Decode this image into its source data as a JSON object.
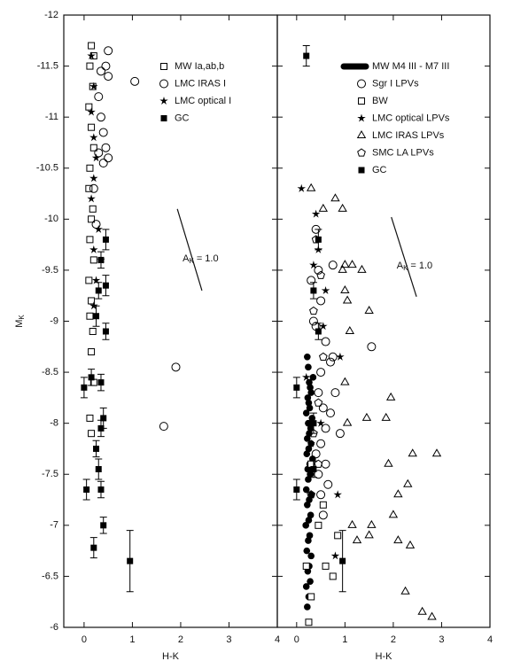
{
  "chart_data": [
    {
      "type": "scatter",
      "xlabel": "H-K",
      "ylabel": "M",
      "ylabel_subscript": "K",
      "xlim": [
        -0.42,
        4
      ],
      "ylim": [
        -6,
        -12
      ],
      "xticks": [
        0,
        1,
        2,
        3,
        4
      ],
      "yticks": [
        -12,
        -11.5,
        -11,
        -10.5,
        -10,
        -9.5,
        -9,
        -8.5,
        -8,
        -7.5,
        -7,
        -6.5,
        -6
      ],
      "show_ytick_labels": true,
      "legend_position": "upper right",
      "annotation": {
        "x": [
          1.93,
          2.44
        ],
        "y": [
          -10.1,
          -9.3
        ],
        "text": "A",
        "subscript": "K",
        "suffix": "= 1.0"
      },
      "series": [
        {
          "name": "MW Ia,ab,b",
          "marker": "square-open",
          "color": "#000000",
          "x": [
            0.15,
            0.2,
            0.12,
            0.18,
            0.1,
            0.15,
            0.2,
            0.12,
            0.1,
            0.18,
            0.15,
            0.12,
            0.2,
            0.1,
            0.15,
            0.12,
            0.18,
            0.15,
            0.2,
            0.12,
            0.15
          ],
          "values": [
            -11.7,
            -11.6,
            -11.5,
            -11.3,
            -11.1,
            -10.9,
            -10.7,
            -10.5,
            -10.3,
            -10.1,
            -10.0,
            -9.8,
            -9.6,
            -9.4,
            -9.2,
            -9.05,
            -8.9,
            -8.7,
            -8.4,
            -8.05,
            -7.9
          ]
        },
        {
          "name": "LMC IRAS I",
          "marker": "circle-open",
          "color": "#000000",
          "x": [
            0.5,
            0.45,
            0.35,
            0.5,
            1.05,
            0.3,
            0.35,
            0.4,
            0.45,
            0.5,
            0.4,
            0.3,
            1.9,
            1.65,
            0.2,
            0.25
          ],
          "values": [
            -11.65,
            -11.5,
            -11.45,
            -11.4,
            -11.35,
            -11.2,
            -11.0,
            -10.85,
            -10.7,
            -10.6,
            -10.55,
            -10.65,
            -8.55,
            -7.97,
            -10.3,
            -9.95
          ]
        },
        {
          "name": "LMC optical I",
          "marker": "star",
          "color": "#000000",
          "x": [
            0.15,
            0.2,
            0.15,
            0.2,
            0.25,
            0.2,
            0.15,
            0.3,
            0.2,
            0.35,
            0.25,
            0.2
          ],
          "values": [
            -11.6,
            -11.3,
            -11.05,
            -10.8,
            -10.6,
            -10.4,
            -10.2,
            -9.9,
            -9.7,
            -9.6,
            -9.4,
            -9.15
          ]
        },
        {
          "name": "GC",
          "marker": "square-filled",
          "color": "#000000",
          "x": [
            0.45,
            0.35,
            0.45,
            0.3,
            0.25,
            0.45,
            0.0,
            0.35,
            0.15,
            0.4,
            0.35,
            0.25,
            0.3,
            0.05,
            0.35,
            0.4,
            0.2,
            0.95
          ],
          "values": [
            -9.8,
            -9.6,
            -9.35,
            -9.3,
            -9.05,
            -8.9,
            -8.35,
            -8.4,
            -8.45,
            -8.05,
            -7.95,
            -7.75,
            -7.55,
            -7.35,
            -7.35,
            -7.0,
            -6.78,
            -6.65
          ],
          "errors": [
            0.1,
            0.08,
            0.1,
            0.08,
            0.1,
            0.08,
            0.1,
            0.08,
            0.08,
            0.1,
            0.08,
            0.08,
            0.1,
            0.1,
            0.08,
            0.08,
            0.1,
            0.3
          ]
        }
      ]
    },
    {
      "type": "scatter",
      "xlabel": "H-K",
      "xlim": [
        -0.4,
        4
      ],
      "ylim": [
        -6,
        -12
      ],
      "xticks": [
        0,
        1,
        2,
        3,
        4
      ],
      "yticks": [
        -12,
        -11.5,
        -11,
        -10.5,
        -10,
        -9.5,
        -9,
        -8.5,
        -8,
        -7.5,
        -7,
        -6.5,
        -6
      ],
      "show_ytick_labels": false,
      "legend_position": "upper right",
      "annotation": {
        "x": [
          1.96,
          2.48
        ],
        "y": [
          -10.02,
          -9.24
        ],
        "text": "A",
        "subscript": "K",
        "suffix": "= 1.0"
      },
      "series": [
        {
          "name": "MW M4 III - M7 III",
          "marker": "dot",
          "color": "#000000",
          "x": [
            0.22,
            0.25,
            0.2,
            0.28,
            0.23,
            0.26,
            0.3,
            0.21,
            0.24,
            0.27,
            0.19,
            0.25,
            0.29,
            0.22,
            0.26,
            0.31,
            0.2,
            0.24,
            0.28,
            0.23,
            0.27,
            0.33,
            0.21,
            0.25,
            0.3,
            0.22,
            0.26,
            0.29,
            0.24,
            0.32,
            0.2,
            0.27,
            0.25,
            0.23,
            0.3,
            0.28,
            0.26,
            0.34,
            0.24,
            0.22
          ],
          "values": [
            -6.2,
            -6.3,
            -6.4,
            -6.45,
            -6.55,
            -6.6,
            -6.7,
            -6.75,
            -6.85,
            -6.9,
            -7.0,
            -7.05,
            -7.1,
            -7.2,
            -7.25,
            -7.3,
            -7.35,
            -7.45,
            -7.5,
            -7.55,
            -7.6,
            -7.65,
            -7.7,
            -7.75,
            -7.8,
            -7.85,
            -7.9,
            -7.95,
            -8.0,
            -8.05,
            -8.1,
            -8.15,
            -8.2,
            -8.25,
            -8.3,
            -8.35,
            -8.4,
            -8.45,
            -8.55,
            -8.65
          ]
        },
        {
          "name": "Sgr I LPVs",
          "marker": "circle-open",
          "color": "#000000",
          "x": [
            0.4,
            0.45,
            0.3,
            0.75,
            0.5,
            0.35,
            0.6,
            0.7,
            0.5,
            0.45,
            0.55,
            0.7,
            0.6,
            0.9,
            0.5,
            0.6,
            0.45,
            0.65,
            0.5,
            0.4,
            0.8,
            1.55,
            0.55,
            0.4,
            0.75
          ],
          "values": [
            -9.9,
            -9.5,
            -9.4,
            -9.55,
            -9.2,
            -9.0,
            -8.8,
            -8.6,
            -8.5,
            -8.3,
            -8.15,
            -8.1,
            -7.95,
            -7.9,
            -7.8,
            -7.6,
            -7.5,
            -7.4,
            -7.3,
            -7.7,
            -8.3,
            -8.75,
            -7.1,
            -8.95,
            -8.65
          ]
        },
        {
          "name": "BW",
          "marker": "square-open",
          "color": "#000000",
          "x": [
            0.25,
            0.3,
            0.2,
            0.6,
            0.75,
            0.85,
            0.45,
            0.3,
            0.55
          ],
          "values": [
            -6.05,
            -6.3,
            -6.6,
            -6.6,
            -6.5,
            -6.9,
            -7.0,
            -7.6,
            -7.2
          ]
        },
        {
          "name": "LMC optical LPVs",
          "marker": "star",
          "color": "#000000",
          "x": [
            0.1,
            0.4,
            0.45,
            0.35,
            0.6,
            0.55,
            0.9,
            0.2,
            0.85,
            0.8,
            0.5,
            0.3
          ],
          "values": [
            -10.3,
            -10.05,
            -9.7,
            -9.55,
            -9.3,
            -8.95,
            -8.65,
            -8.45,
            -7.3,
            -6.7,
            -8.0,
            -7.8
          ]
        },
        {
          "name": "LMC IRAS LPVs",
          "marker": "triangle-open",
          "color": "#000000",
          "x": [
            0.8,
            0.95,
            1.0,
            1.15,
            0.95,
            1.35,
            1.05,
            1.0,
            1.1,
            1.0,
            0.3,
            1.5,
            0.55,
            1.05,
            1.45,
            1.95,
            1.85,
            2.1,
            1.9,
            2.4,
            2.3,
            2.9,
            1.15,
            1.25,
            1.5,
            2.0,
            2.1,
            2.35,
            2.25,
            2.6,
            2.8,
            1.55
          ],
          "values": [
            -10.2,
            -10.1,
            -9.55,
            -9.55,
            -9.5,
            -9.5,
            -9.2,
            -9.3,
            -8.9,
            -8.4,
            -10.3,
            -9.1,
            -10.1,
            -8.0,
            -8.05,
            -8.25,
            -8.05,
            -7.3,
            -7.6,
            -7.7,
            -7.4,
            -7.7,
            -7.0,
            -6.85,
            -6.9,
            -7.1,
            -6.85,
            -6.8,
            -6.35,
            -6.15,
            -6.1,
            -7.0
          ]
        },
        {
          "name": "SMC LA LPVs",
          "marker": "pentagon-open",
          "color": "#000000",
          "x": [
            0.4,
            0.5,
            0.35,
            0.55,
            0.45,
            0.35,
            0.45,
            0.3
          ],
          "values": [
            -9.8,
            -9.45,
            -9.1,
            -8.65,
            -8.2,
            -7.9,
            -7.6,
            -7.3
          ]
        },
        {
          "name": "GC",
          "marker": "square-filled",
          "color": "#000000",
          "x": [
            0.2,
            0.45,
            0.35,
            0.45,
            0.0,
            0.35,
            0.0,
            0.35,
            0.95
          ],
          "values": [
            -11.6,
            -9.8,
            -9.3,
            -8.9,
            -8.35,
            -8.0,
            -7.35,
            -7.55,
            -6.65
          ],
          "errors": [
            0.1,
            0.1,
            0.08,
            0.08,
            0.1,
            0.1,
            0.1,
            0.08,
            0.3
          ]
        }
      ]
    }
  ]
}
